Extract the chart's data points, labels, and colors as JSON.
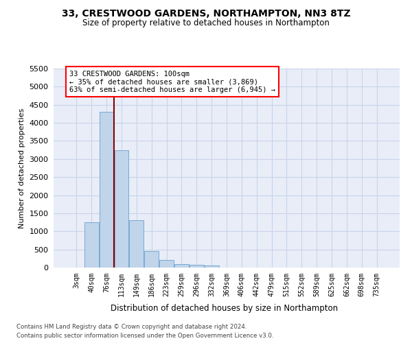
{
  "title_line1": "33, CRESTWOOD GARDENS, NORTHAMPTON, NN3 8TZ",
  "title_line2": "Size of property relative to detached houses in Northampton",
  "xlabel": "Distribution of detached houses by size in Northampton",
  "ylabel": "Number of detached properties",
  "annotation_line1": "33 CRESTWOOD GARDENS: 100sqm",
  "annotation_line2": "← 35% of detached houses are smaller (3,869)",
  "annotation_line3": "63% of semi-detached houses are larger (6,945) →",
  "categories": [
    "3sqm",
    "40sqm",
    "76sqm",
    "113sqm",
    "149sqm",
    "186sqm",
    "223sqm",
    "259sqm",
    "296sqm",
    "332sqm",
    "369sqm",
    "406sqm",
    "442sqm",
    "479sqm",
    "515sqm",
    "552sqm",
    "589sqm",
    "625sqm",
    "662sqm",
    "698sqm",
    "735sqm"
  ],
  "values": [
    0,
    1250,
    4300,
    3250,
    1300,
    450,
    200,
    100,
    75,
    60,
    0,
    0,
    0,
    0,
    0,
    0,
    0,
    0,
    0,
    0,
    0
  ],
  "bar_color": "#c0d4ea",
  "bar_edge_color": "#7aaad0",
  "red_line_x": 2.5,
  "ylim_max": 5500,
  "yticks": [
    0,
    500,
    1000,
    1500,
    2000,
    2500,
    3000,
    3500,
    4000,
    4500,
    5000,
    5500
  ],
  "grid_color": "#c8d4e8",
  "plot_bg_color": "#e8edf8",
  "footer_line1": "Contains HM Land Registry data © Crown copyright and database right 2024.",
  "footer_line2": "Contains public sector information licensed under the Open Government Licence v3.0."
}
